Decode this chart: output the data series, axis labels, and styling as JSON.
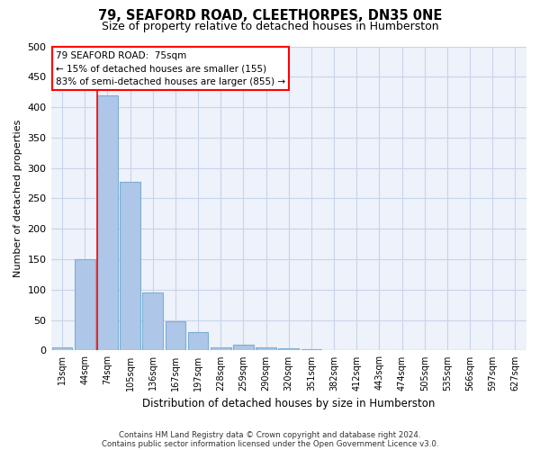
{
  "title": "79, SEAFORD ROAD, CLEETHORPES, DN35 0NE",
  "subtitle": "Size of property relative to detached houses in Humberston",
  "xlabel": "Distribution of detached houses by size in Humberston",
  "ylabel": "Number of detached properties",
  "footnote1": "Contains HM Land Registry data © Crown copyright and database right 2024.",
  "footnote2": "Contains public sector information licensed under the Open Government Licence v3.0.",
  "bin_labels": [
    "13sqm",
    "44sqm",
    "74sqm",
    "105sqm",
    "136sqm",
    "167sqm",
    "197sqm",
    "228sqm",
    "259sqm",
    "290sqm",
    "320sqm",
    "351sqm",
    "382sqm",
    "412sqm",
    "443sqm",
    "474sqm",
    "505sqm",
    "535sqm",
    "566sqm",
    "597sqm",
    "627sqm"
  ],
  "bar_values": [
    5,
    150,
    420,
    278,
    95,
    48,
    30,
    5,
    10,
    5,
    3,
    2,
    0,
    0,
    0,
    0,
    0,
    0,
    0,
    0,
    0
  ],
  "bar_color": "#aec6e8",
  "bar_edge_color": "#7aafd4",
  "red_line_index": 2,
  "property_label": "79 SEAFORD ROAD:  75sqm",
  "annotation_line1": "← 15% of detached houses are smaller (155)",
  "annotation_line2": "83% of semi-detached houses are larger (855) →",
  "annotation_box_color": "white",
  "annotation_box_edge_color": "red",
  "ylim": [
    0,
    500
  ],
  "yticks": [
    0,
    50,
    100,
    150,
    200,
    250,
    300,
    350,
    400,
    450,
    500
  ],
  "background_color": "#eef2fa",
  "grid_color": "#c8d4e8"
}
